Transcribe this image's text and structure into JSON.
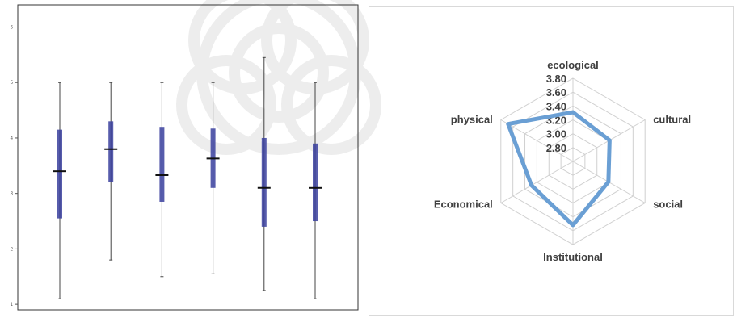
{
  "chart_data": [
    {
      "type": "boxplot",
      "title": "",
      "xlabel": "",
      "ylabel": "",
      "ylim": [
        0.9,
        6.4
      ],
      "y_ticks": [
        "1",
        "2",
        "3",
        "4",
        "5",
        "6"
      ],
      "colors": {
        "box": "#3a3f9e",
        "whisker": "#444444",
        "median": "#111111",
        "frame": "#333333"
      },
      "series": [
        {
          "min": 1.1,
          "q1": 2.55,
          "median": 3.4,
          "q3": 4.15,
          "max": 5.0
        },
        {
          "min": 1.8,
          "q1": 3.2,
          "median": 3.8,
          "q3": 4.3,
          "max": 5.0
        },
        {
          "min": 1.5,
          "q1": 2.85,
          "median": 3.33,
          "q3": 4.2,
          "max": 5.0
        },
        {
          "min": 1.55,
          "q1": 3.1,
          "median": 3.63,
          "q3": 4.17,
          "max": 5.0
        },
        {
          "min": 1.25,
          "q1": 2.4,
          "median": 3.1,
          "q3": 4.0,
          "max": 5.45
        },
        {
          "min": 1.1,
          "q1": 2.5,
          "median": 3.1,
          "q3": 3.9,
          "max": 5.0
        }
      ]
    },
    {
      "type": "radar",
      "title": "",
      "axes": [
        "ecological",
        "cultural",
        "social",
        "Institutional",
        "Economical",
        "physical"
      ],
      "ticks": [
        "2.80",
        "3.00",
        "3.20",
        "3.40",
        "3.60",
        "3.80"
      ],
      "range": [
        2.6,
        3.8
      ],
      "series": [
        {
          "values": [
            3.31,
            3.21,
            3.19,
            3.52,
            3.29,
            3.68
          ],
          "color": "#6a9fd4"
        }
      ],
      "grid_color": "#d0d0d0"
    }
  ]
}
